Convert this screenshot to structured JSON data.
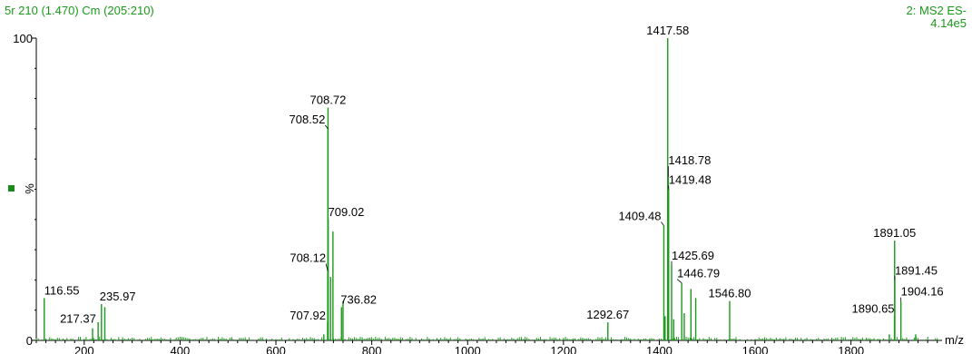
{
  "header": {
    "left": "5r 210 (1.470) Cm (205:210)",
    "right_line1": "2: MS2 ES-",
    "right_line2": "4.14e5"
  },
  "colors": {
    "trace": "#1a9a1a",
    "axis": "#000000",
    "marker": "#1a8a1a"
  },
  "chart_data": {
    "type": "bar",
    "xlabel": "m/z",
    "ylabel": "%",
    "xlim": [
      100,
      1990
    ],
    "ylim": [
      0,
      100
    ],
    "x_ticks": [
      200,
      400,
      600,
      800,
      1000,
      1200,
      1400,
      1600,
      1800
    ],
    "y_tick_labels": [
      "100",
      "0"
    ],
    "peaks": [
      {
        "mz": 116.55,
        "intensity": 14,
        "label": "116.55"
      },
      {
        "mz": 217.37,
        "intensity": 4,
        "label": "217.37"
      },
      {
        "mz": 229.0,
        "intensity": 6
      },
      {
        "mz": 235.97,
        "intensity": 12,
        "label": "235.97"
      },
      {
        "mz": 243.0,
        "intensity": 11
      },
      {
        "mz": 700.0,
        "intensity": 2
      },
      {
        "mz": 707.92,
        "intensity": 6,
        "label": "707.92"
      },
      {
        "mz": 708.12,
        "intensity": 23,
        "label": "708.12"
      },
      {
        "mz": 708.52,
        "intensity": 70,
        "label": "708.52"
      },
      {
        "mz": 708.72,
        "intensity": 77,
        "label": "708.72"
      },
      {
        "mz": 709.02,
        "intensity": 40,
        "label": "709.02"
      },
      {
        "mz": 714.0,
        "intensity": 21
      },
      {
        "mz": 719.0,
        "intensity": 36
      },
      {
        "mz": 736.82,
        "intensity": 11,
        "label": "736.82"
      },
      {
        "mz": 740.0,
        "intensity": 13
      },
      {
        "mz": 1292.67,
        "intensity": 6,
        "label": "1292.67"
      },
      {
        "mz": 1409.48,
        "intensity": 38,
        "label": "1409.48"
      },
      {
        "mz": 1412.0,
        "intensity": 8
      },
      {
        "mz": 1417.58,
        "intensity": 100,
        "label": "1417.58"
      },
      {
        "mz": 1418.78,
        "intensity": 54,
        "label": "1418.78"
      },
      {
        "mz": 1419.48,
        "intensity": 50,
        "label": "1419.48"
      },
      {
        "mz": 1425.69,
        "intensity": 25,
        "label": "1425.69"
      },
      {
        "mz": 1430.0,
        "intensity": 7
      },
      {
        "mz": 1446.79,
        "intensity": 19,
        "label": "1446.79"
      },
      {
        "mz": 1452.0,
        "intensity": 9
      },
      {
        "mz": 1466.0,
        "intensity": 17
      },
      {
        "mz": 1476.0,
        "intensity": 14
      },
      {
        "mz": 1546.8,
        "intensity": 13,
        "label": "1546.80"
      },
      {
        "mz": 1880.0,
        "intensity": 2
      },
      {
        "mz": 1890.65,
        "intensity": 8,
        "label": "1890.65"
      },
      {
        "mz": 1891.05,
        "intensity": 33,
        "label": "1891.05"
      },
      {
        "mz": 1891.45,
        "intensity": 20,
        "label": "1891.45"
      },
      {
        "mz": 1904.16,
        "intensity": 13,
        "label": "1904.16"
      },
      {
        "mz": 1935.0,
        "intensity": 2
      }
    ]
  }
}
